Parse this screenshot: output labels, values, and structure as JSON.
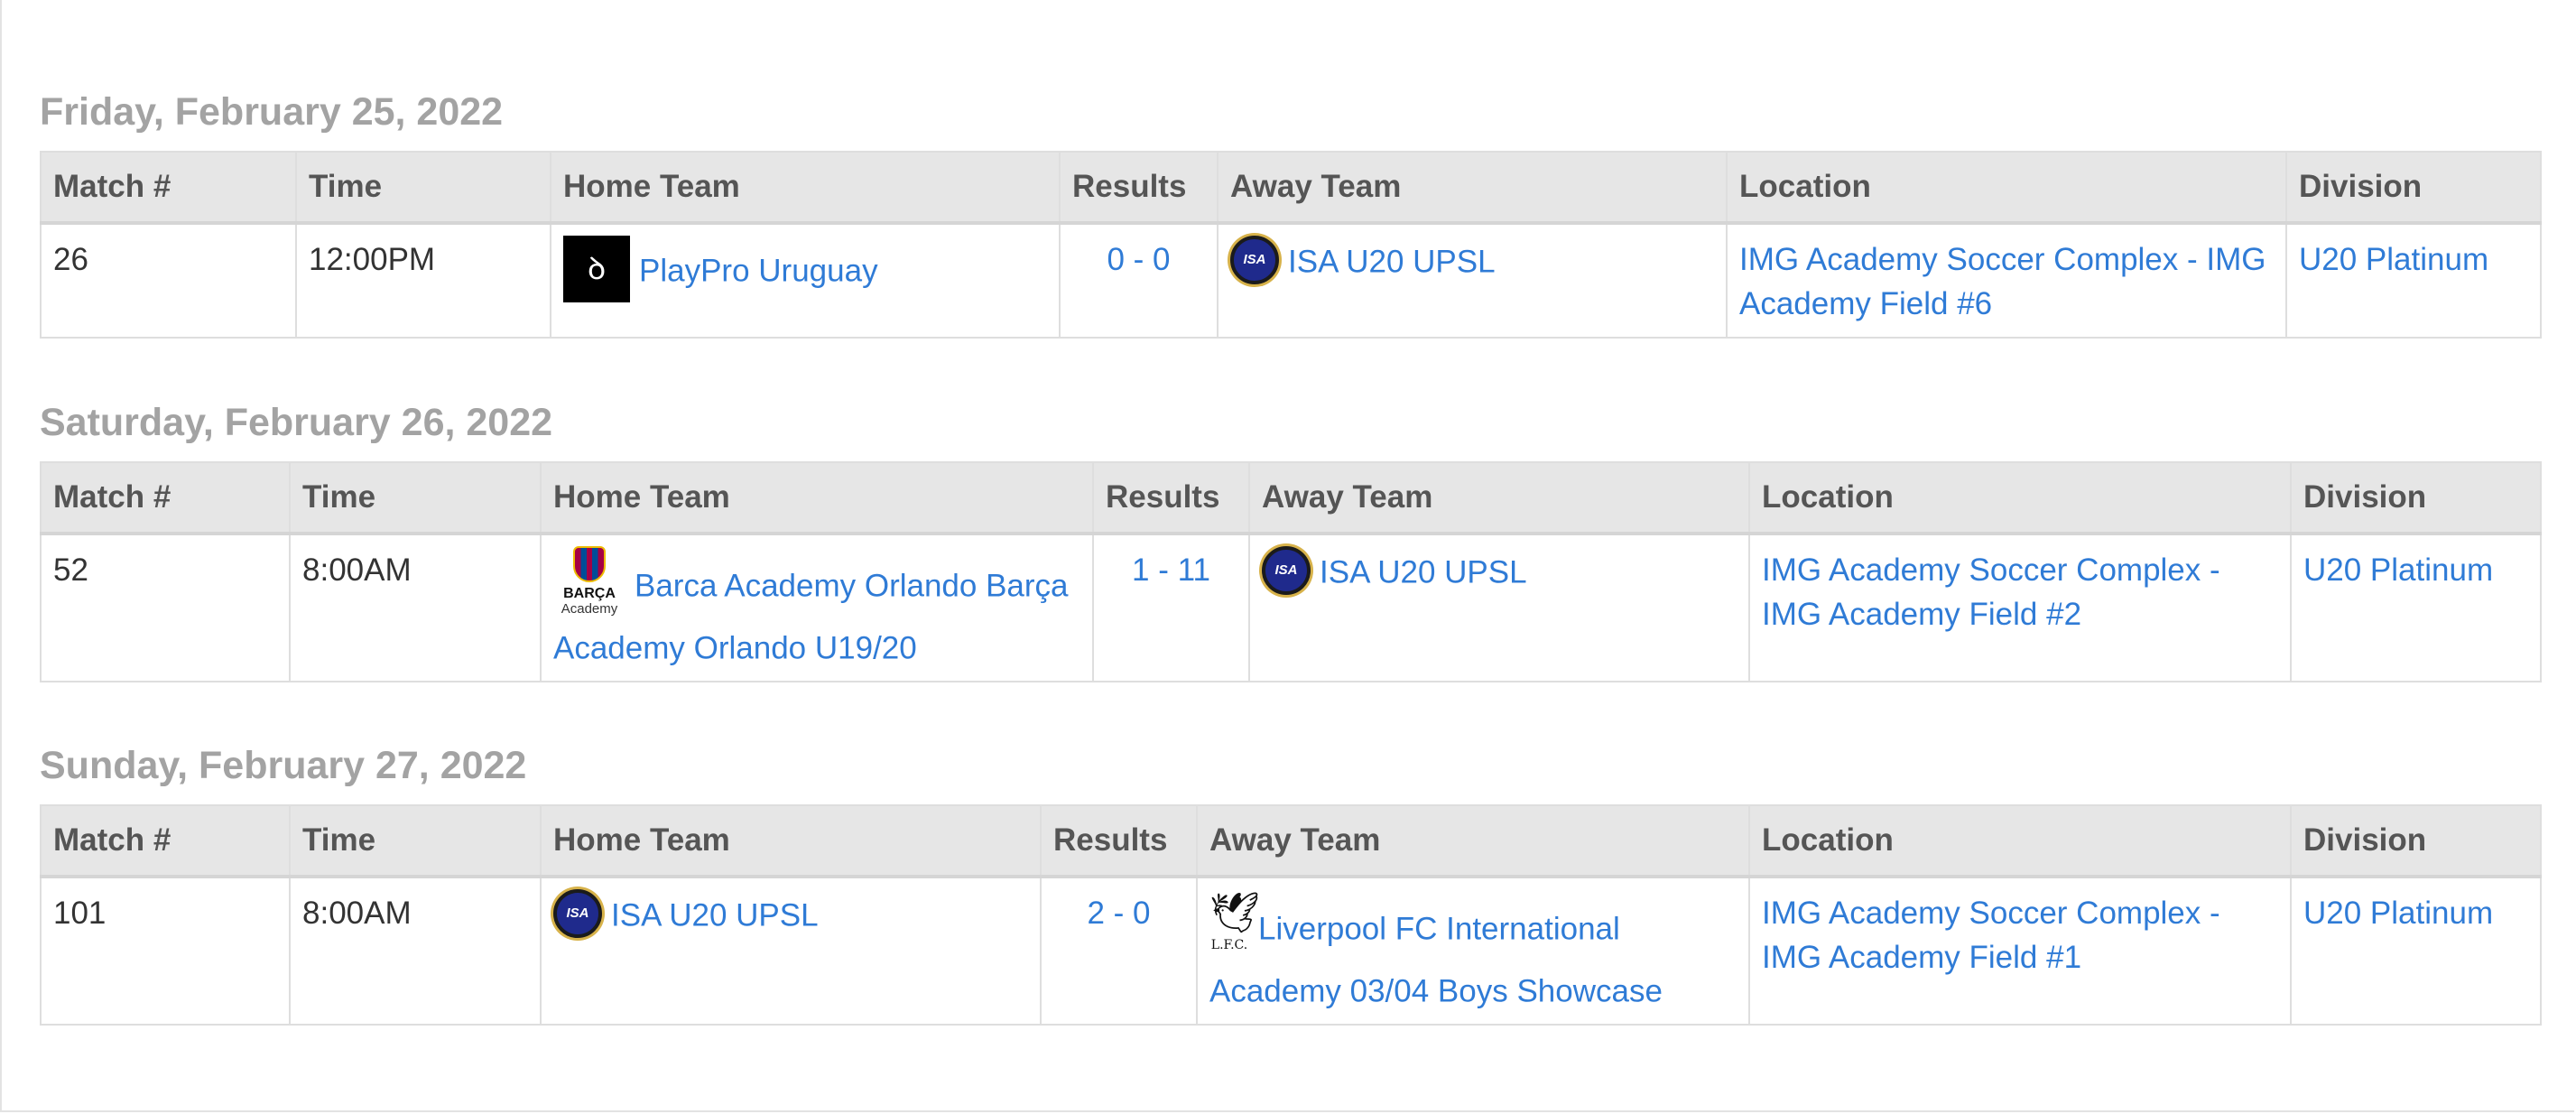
{
  "columns": [
    "Match #",
    "Time",
    "Home Team",
    "Results",
    "Away Team",
    "Location",
    "Division"
  ],
  "days": [
    {
      "title": "Friday, February 25, 2022",
      "match": "26",
      "time": "12:00PM",
      "home_team": "PlayPro Uruguay",
      "home_logo": "playpro-logo",
      "result": "0 - 0",
      "away_team": "ISA U20 UPSL",
      "away_logo": "isa-logo",
      "location": "IMG Academy Soccer Complex - IMG Academy Field #6",
      "division": "U20 Platinum"
    },
    {
      "title": "Saturday, February 26, 2022",
      "match": "52",
      "time": "8:00AM",
      "home_team": "Barca Academy Orlando Barça Academy Orlando U19/20",
      "home_logo": "barca-academy-logo",
      "home_logo_text": "BARÇA",
      "home_logo_subtext": "Academy",
      "result": "1 - 11",
      "away_team": "ISA U20 UPSL",
      "away_logo": "isa-logo",
      "location": "IMG Academy Soccer Complex - IMG Academy Field #2",
      "division": "U20 Platinum"
    },
    {
      "title": "Sunday, February 27, 2022",
      "match": "101",
      "time": "8:00AM",
      "home_team": "ISA U20 UPSL",
      "home_logo": "isa-logo",
      "result": "2 - 0",
      "away_team": "Liverpool FC International Academy 03/04 Boys Showcase",
      "away_logo": "liverpool-fc-logo",
      "away_logo_text": "L.F.C.",
      "location": "IMG Academy Soccer Complex - IMG Academy Field #1",
      "division": "U20 Platinum"
    }
  ],
  "colors": {
    "link": "#2f7bd6",
    "day_title": "#a3a3a3",
    "header_bg": "#e6e6e6",
    "header_text": "#555555"
  }
}
